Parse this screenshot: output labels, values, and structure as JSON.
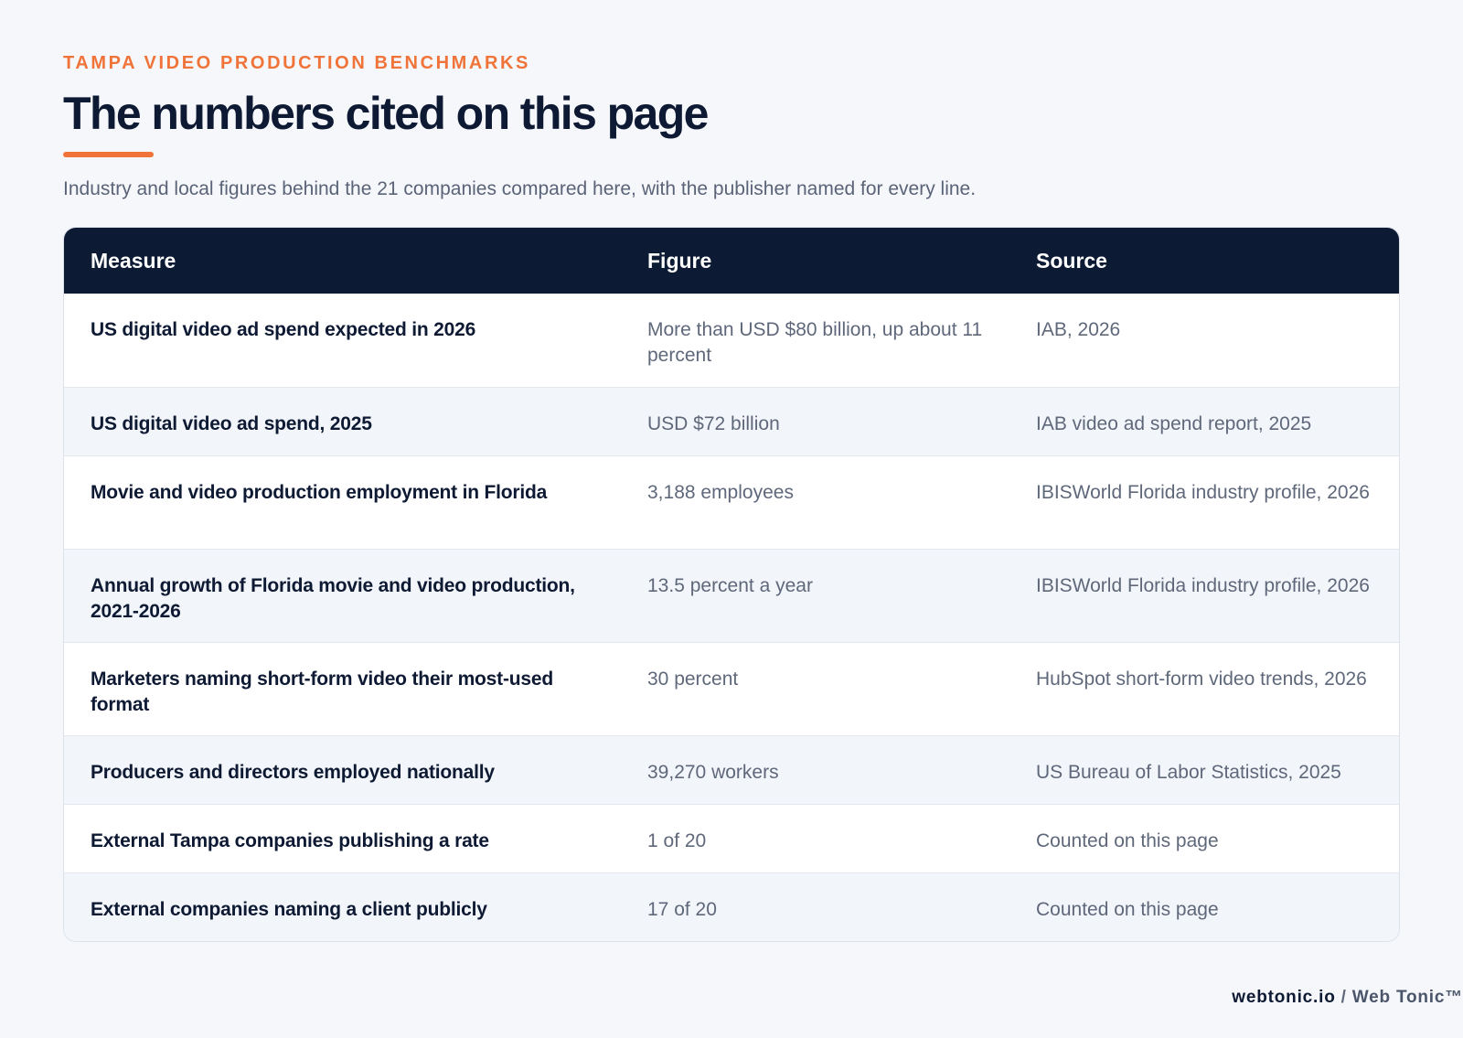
{
  "header": {
    "eyebrow": "TAMPA VIDEO PRODUCTION BENCHMARKS",
    "title": "The numbers cited on this page",
    "subtitle": "Industry and local figures behind the 21 companies compared here, with the publisher named for every line."
  },
  "table": {
    "columns": [
      "Measure",
      "Figure",
      "Source"
    ],
    "rows": [
      {
        "measure": "US digital video ad spend expected in 2026",
        "figure": "More than USD $80 billion, up about 11 percent",
        "source": "IAB, 2026"
      },
      {
        "measure": "US digital video ad spend, 2025",
        "figure": "USD $72 billion",
        "source": "IAB video ad spend report, 2025"
      },
      {
        "measure": "Movie and video production employment in Florida",
        "figure": "3,188 employees",
        "source": "IBISWorld Florida industry profile, 2026"
      },
      {
        "measure": "Annual growth of Florida movie and video production, 2021-2026",
        "figure": "13.5 percent a year",
        "source": "IBISWorld Florida industry profile, 2026"
      },
      {
        "measure": "Marketers naming short-form video their most-used format",
        "figure": "30 percent",
        "source": "HubSpot short-form video trends, 2026"
      },
      {
        "measure": "Producers and directors employed nationally",
        "figure": "39,270 workers",
        "source": "US Bureau of Labor Statistics, 2025"
      },
      {
        "measure": "External Tampa companies publishing a rate",
        "figure": "1 of 20",
        "source": "Counted on this page"
      },
      {
        "measure": "External companies naming a client publicly",
        "figure": "17 of 20",
        "source": "Counted on this page"
      }
    ]
  },
  "footer": {
    "domain": "webtonic.io",
    "separator": "/",
    "brand": "Web Tonic™"
  },
  "colors": {
    "accent": "#f0743a",
    "header_bg": "#0c1a34",
    "page_bg": "#f5f7fa"
  }
}
